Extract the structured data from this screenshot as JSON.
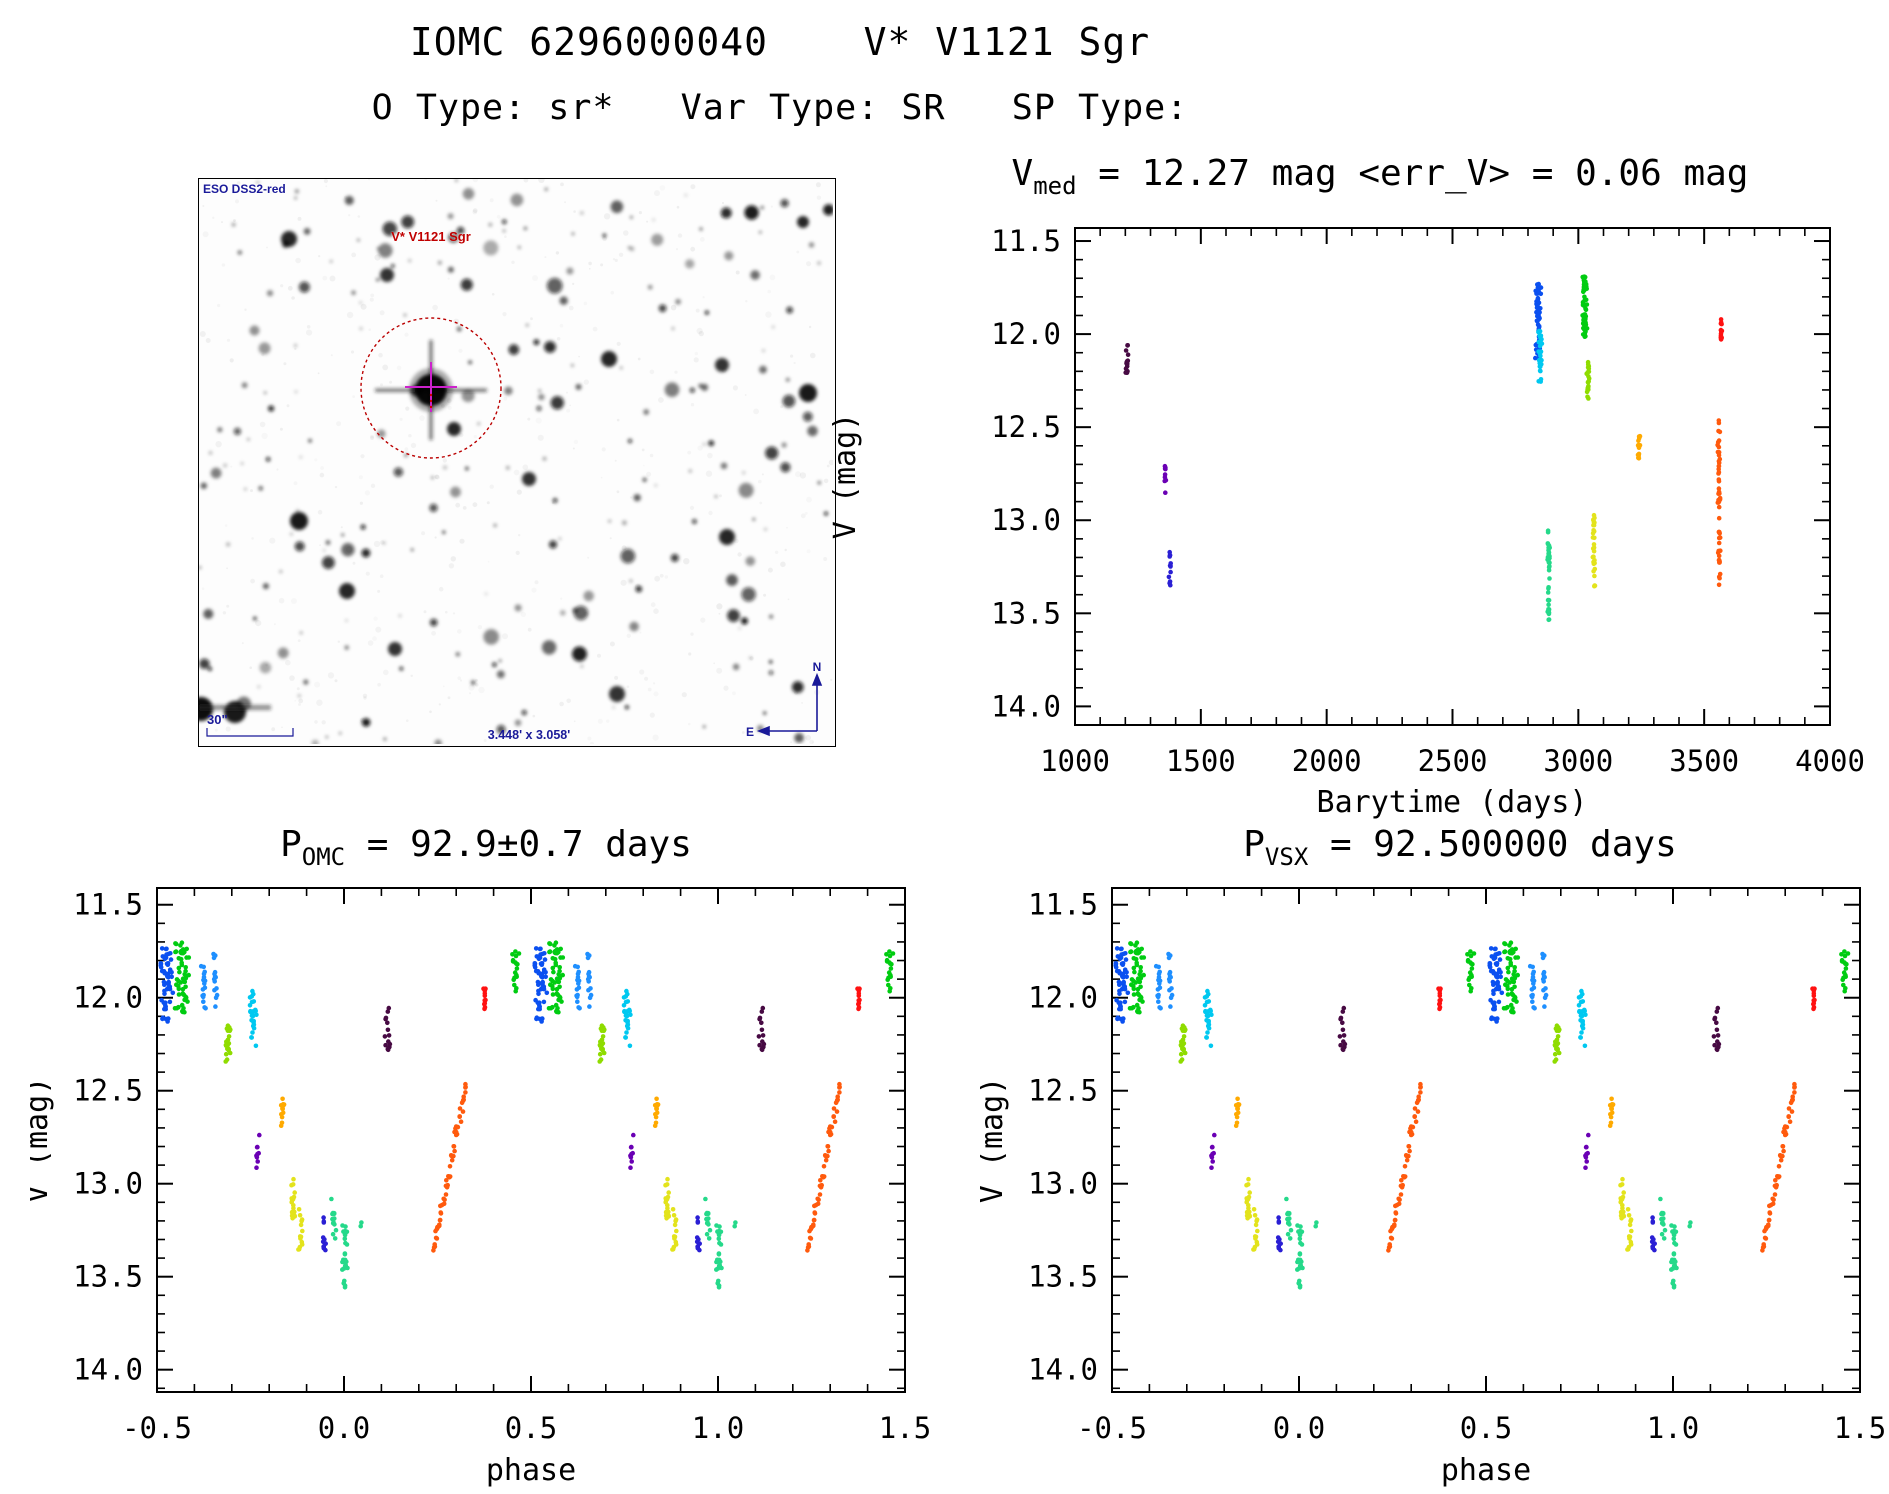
{
  "header": {
    "title": "IOMC 6296000040    V* V1121 Sgr",
    "subtitle": "O Type: sr*   Var Type: SR   SP Type:"
  },
  "finder": {
    "survey_label": "ESO DSS2-red",
    "target_label": "V* V1121 Sgr",
    "scale_label": "30\"",
    "fov_label": "3.448' x 3.058'",
    "compass_north": "N",
    "compass_east": "E"
  },
  "chart_data": [
    {
      "id": "time",
      "type": "scatter",
      "title_pre": "V",
      "title_sub": "med",
      "title_post": " = 12.27 mag <err_V> = 0.06 mag",
      "v_median_mag": 12.27,
      "v_mean_err_mag": 0.06,
      "xlabel": "Barytime (days)",
      "ylabel": "V (mag)",
      "xlim": [
        1000,
        4000
      ],
      "ylim": [
        11.43,
        14.1
      ],
      "y_inverted": true,
      "grid": false,
      "xticks": [
        1000,
        1500,
        2000,
        2500,
        3000,
        3500,
        4000
      ],
      "xtick_labels": [
        "1000",
        "1500",
        "2000",
        "2500",
        "3000",
        "3500",
        "4000"
      ],
      "x_minor_step": 100,
      "yticks": [
        11.5,
        12.0,
        12.5,
        13.0,
        13.5,
        14.0
      ],
      "ytick_labels": [
        "11.5",
        "12.0",
        "12.5",
        "13.0",
        "13.5",
        "14.0"
      ],
      "y_minor_step": 0.1,
      "clusters": [
        {
          "name": "epoch-01",
          "color": "#470a43",
          "t": 1207,
          "t_spread": 6,
          "v_min": 12.03,
          "v_max": 12.24,
          "n": 16
        },
        {
          "name": "epoch-02",
          "color": "#6a00b4",
          "t": 1358,
          "t_spread": 5,
          "v_min": 12.7,
          "v_max": 12.9,
          "n": 9
        },
        {
          "name": "epoch-03",
          "color": "#2a1fd4",
          "t": 1377,
          "t_spread": 5,
          "v_min": 13.17,
          "v_max": 13.35,
          "n": 13
        },
        {
          "name": "epoch-04",
          "color": "#0b50f0",
          "t": 2840,
          "t_spread": 13,
          "v_min": 11.73,
          "v_max": 12.13,
          "n": 60
        },
        {
          "name": "epoch-05",
          "color": "#00c8f0",
          "t": 2849,
          "t_spread": 8,
          "v_min": 11.98,
          "v_max": 12.27,
          "n": 28
        },
        {
          "name": "epoch-06",
          "color": "#25d98a",
          "t": 2883,
          "t_spread": 6,
          "v_min": 13.05,
          "v_max": 13.55,
          "n": 38
        },
        {
          "name": "epoch-07",
          "color": "#00cc11",
          "t": 3026,
          "t_spread": 11,
          "v_min": 11.69,
          "v_max": 12.05,
          "n": 55
        },
        {
          "name": "epoch-08",
          "color": "#8fdc00",
          "t": 3038,
          "t_spread": 6,
          "v_min": 12.15,
          "v_max": 12.35,
          "n": 22
        },
        {
          "name": "epoch-09",
          "color": "#e3e31c",
          "t": 3062,
          "t_spread": 5,
          "v_min": 12.97,
          "v_max": 13.36,
          "n": 30
        },
        {
          "name": "epoch-10",
          "color": "#ffaa00",
          "t": 3241,
          "t_spread": 5,
          "v_min": 12.53,
          "v_max": 12.67,
          "n": 14
        },
        {
          "name": "epoch-11",
          "color": "#ff5a0d",
          "t": 3559,
          "t_spread": 6,
          "v_min": 12.45,
          "v_max": 13.36,
          "n": 55
        },
        {
          "name": "epoch-12",
          "color": "#ff1111",
          "t": 3567,
          "t_spread": 4,
          "v_min": 11.92,
          "v_max": 12.03,
          "n": 14
        }
      ]
    },
    {
      "id": "phase_omc",
      "type": "scatter",
      "title_pre": "P",
      "title_sub": "OMC",
      "title_post": " = 92.9±0.7 days",
      "period_days": "92.9±0.7",
      "xlabel": "phase",
      "ylabel": "V (mag)",
      "xlim": [
        -0.5,
        1.5
      ],
      "ylim": [
        11.41,
        14.12
      ],
      "y_inverted": true,
      "grid": false,
      "xticks": [
        -0.5,
        0.0,
        0.5,
        1.0,
        1.5
      ],
      "xtick_labels": [
        "-0.5",
        "0.0",
        "0.5",
        "1.0",
        "1.5"
      ],
      "x_minor_step": 0.1,
      "yticks": [
        11.5,
        12.0,
        12.5,
        13.0,
        13.5,
        14.0
      ],
      "ytick_labels": [
        "11.5",
        "12.0",
        "12.5",
        "13.0",
        "13.5",
        "14.0"
      ],
      "y_minor_step": 0.1,
      "clusters": [
        {
          "name": "green-a",
          "color": "#00cc11",
          "phase": 0.46,
          "p_spread": 0.012,
          "v_min": 11.75,
          "v_max": 11.97,
          "n": 18
        },
        {
          "name": "blue-main",
          "color": "#0b50f0",
          "phase": 0.525,
          "p_spread": 0.02,
          "v_min": 11.73,
          "v_max": 12.14,
          "n": 55
        },
        {
          "name": "green-b",
          "color": "#00cc11",
          "phase": 0.565,
          "p_spread": 0.022,
          "v_min": 11.69,
          "v_max": 12.08,
          "n": 55
        },
        {
          "name": "blue-b",
          "color": "#1e8fff",
          "phase": 0.625,
          "p_spread": 0.008,
          "v_min": 11.8,
          "v_max": 12.06,
          "n": 16
        },
        {
          "name": "blue-c",
          "color": "#1e8fff",
          "phase": 0.655,
          "p_spread": 0.008,
          "v_min": 11.76,
          "v_max": 12.05,
          "n": 14
        },
        {
          "name": "chartreuse",
          "color": "#8fdc00",
          "phase": 0.69,
          "p_spread": 0.008,
          "v_min": 12.15,
          "v_max": 12.36,
          "n": 22
        },
        {
          "name": "cyan",
          "color": "#00c8f0",
          "phase": 0.755,
          "p_spread": 0.012,
          "v_min": 11.96,
          "v_max": 12.26,
          "n": 26
        },
        {
          "name": "purple",
          "color": "#6a00b4",
          "phase": 0.768,
          "p_spread": 0.006,
          "v_min": 12.71,
          "v_max": 12.92,
          "n": 9
        },
        {
          "name": "orange",
          "color": "#ffaa00",
          "phase": 0.836,
          "p_spread": 0.006,
          "v_min": 12.53,
          "v_max": 12.69,
          "n": 13
        },
        {
          "name": "yellow-a",
          "color": "#e3e31c",
          "phase": 0.864,
          "p_spread": 0.007,
          "v_min": 12.96,
          "v_max": 13.26,
          "n": 18
        },
        {
          "name": "yellow-b",
          "color": "#e3e31c",
          "phase": 0.884,
          "p_spread": 0.006,
          "v_min": 13.12,
          "v_max": 13.36,
          "n": 14
        },
        {
          "name": "blueviolet",
          "color": "#2a1fd4",
          "phase": 0.945,
          "p_spread": 0.007,
          "v_min": 13.18,
          "v_max": 13.36,
          "n": 12
        },
        {
          "name": "springgreen-a",
          "color": "#25d98a",
          "phase": 0.972,
          "p_spread": 0.009,
          "v_min": 13.07,
          "v_max": 13.34,
          "n": 13
        },
        {
          "name": "springgreen-b",
          "color": "#25d98a",
          "phase": 1.003,
          "p_spread": 0.009,
          "v_min": 13.22,
          "v_max": 13.56,
          "n": 26
        },
        {
          "name": "springgreen-dot",
          "color": "#25d98a",
          "phase": 1.045,
          "p_spread": 0.002,
          "v_min": 13.19,
          "v_max": 13.23,
          "n": 2
        },
        {
          "name": "plum",
          "color": "#470a43",
          "phase": 0.115,
          "p_spread": 0.01,
          "v_min": 12.04,
          "v_max": 12.28,
          "n": 14
        },
        {
          "name": "orangered-rise",
          "color": "#ff5a0d",
          "kind": "diagonal",
          "phase_start": 0.238,
          "phase_end": 0.327,
          "v_start": 13.38,
          "v_end": 12.46,
          "n": 60
        },
        {
          "name": "red",
          "color": "#ff1111",
          "phase": 0.376,
          "p_spread": 0.005,
          "v_min": 11.93,
          "v_max": 12.07,
          "n": 12
        }
      ]
    },
    {
      "id": "phase_vsx",
      "type": "scatter",
      "title_pre": "P",
      "title_sub": "VSX",
      "title_post": " = 92.500000 days",
      "period_days": "92.500000",
      "xlabel": "phase",
      "ylabel": "V (mag)",
      "xlim": [
        -0.5,
        1.5
      ],
      "ylim": [
        11.41,
        14.12
      ],
      "y_inverted": true,
      "grid": false,
      "xticks": [
        -0.5,
        0.0,
        0.5,
        1.0,
        1.5
      ],
      "xtick_labels": [
        "-0.5",
        "0.0",
        "0.5",
        "1.0",
        "1.5"
      ],
      "x_minor_step": 0.1,
      "yticks": [
        11.5,
        12.0,
        12.5,
        13.0,
        13.5,
        14.0
      ],
      "ytick_labels": [
        "11.5",
        "12.0",
        "12.5",
        "13.0",
        "13.5",
        "14.0"
      ],
      "y_minor_step": 0.1,
      "clusters": [
        {
          "name": "green-a",
          "color": "#00cc11",
          "phase": 0.46,
          "p_spread": 0.012,
          "v_min": 11.75,
          "v_max": 11.97,
          "n": 18
        },
        {
          "name": "blue-main",
          "color": "#0b50f0",
          "phase": 0.525,
          "p_spread": 0.02,
          "v_min": 11.73,
          "v_max": 12.14,
          "n": 55
        },
        {
          "name": "green-b",
          "color": "#00cc11",
          "phase": 0.565,
          "p_spread": 0.022,
          "v_min": 11.69,
          "v_max": 12.08,
          "n": 55
        },
        {
          "name": "blue-b",
          "color": "#1e8fff",
          "phase": 0.625,
          "p_spread": 0.008,
          "v_min": 11.8,
          "v_max": 12.06,
          "n": 16
        },
        {
          "name": "blue-c",
          "color": "#1e8fff",
          "phase": 0.655,
          "p_spread": 0.008,
          "v_min": 11.76,
          "v_max": 12.05,
          "n": 14
        },
        {
          "name": "chartreuse",
          "color": "#8fdc00",
          "phase": 0.69,
          "p_spread": 0.008,
          "v_min": 12.15,
          "v_max": 12.36,
          "n": 22
        },
        {
          "name": "cyan",
          "color": "#00c8f0",
          "phase": 0.755,
          "p_spread": 0.012,
          "v_min": 11.96,
          "v_max": 12.26,
          "n": 26
        },
        {
          "name": "purple",
          "color": "#6a00b4",
          "phase": 0.768,
          "p_spread": 0.006,
          "v_min": 12.71,
          "v_max": 12.92,
          "n": 9
        },
        {
          "name": "orange",
          "color": "#ffaa00",
          "phase": 0.836,
          "p_spread": 0.006,
          "v_min": 12.53,
          "v_max": 12.69,
          "n": 13
        },
        {
          "name": "yellow-a",
          "color": "#e3e31c",
          "phase": 0.864,
          "p_spread": 0.007,
          "v_min": 12.96,
          "v_max": 13.26,
          "n": 18
        },
        {
          "name": "yellow-b",
          "color": "#e3e31c",
          "phase": 0.884,
          "p_spread": 0.006,
          "v_min": 13.12,
          "v_max": 13.36,
          "n": 14
        },
        {
          "name": "blueviolet",
          "color": "#2a1fd4",
          "phase": 0.945,
          "p_spread": 0.007,
          "v_min": 13.18,
          "v_max": 13.36,
          "n": 12
        },
        {
          "name": "springgreen-a",
          "color": "#25d98a",
          "phase": 0.972,
          "p_spread": 0.009,
          "v_min": 13.07,
          "v_max": 13.34,
          "n": 13
        },
        {
          "name": "springgreen-b",
          "color": "#25d98a",
          "phase": 1.003,
          "p_spread": 0.009,
          "v_min": 13.22,
          "v_max": 13.56,
          "n": 26
        },
        {
          "name": "springgreen-dot",
          "color": "#25d98a",
          "phase": 1.045,
          "p_spread": 0.002,
          "v_min": 13.19,
          "v_max": 13.23,
          "n": 2
        },
        {
          "name": "plum",
          "color": "#470a43",
          "phase": 0.115,
          "p_spread": 0.01,
          "v_min": 12.04,
          "v_max": 12.28,
          "n": 14
        },
        {
          "name": "orangered-rise",
          "color": "#ff5a0d",
          "kind": "diagonal",
          "phase_start": 0.238,
          "phase_end": 0.327,
          "v_start": 13.38,
          "v_end": 12.46,
          "n": 60
        },
        {
          "name": "red",
          "color": "#ff1111",
          "phase": 0.376,
          "p_spread": 0.005,
          "v_min": 11.93,
          "v_max": 12.07,
          "n": 12
        }
      ]
    }
  ]
}
